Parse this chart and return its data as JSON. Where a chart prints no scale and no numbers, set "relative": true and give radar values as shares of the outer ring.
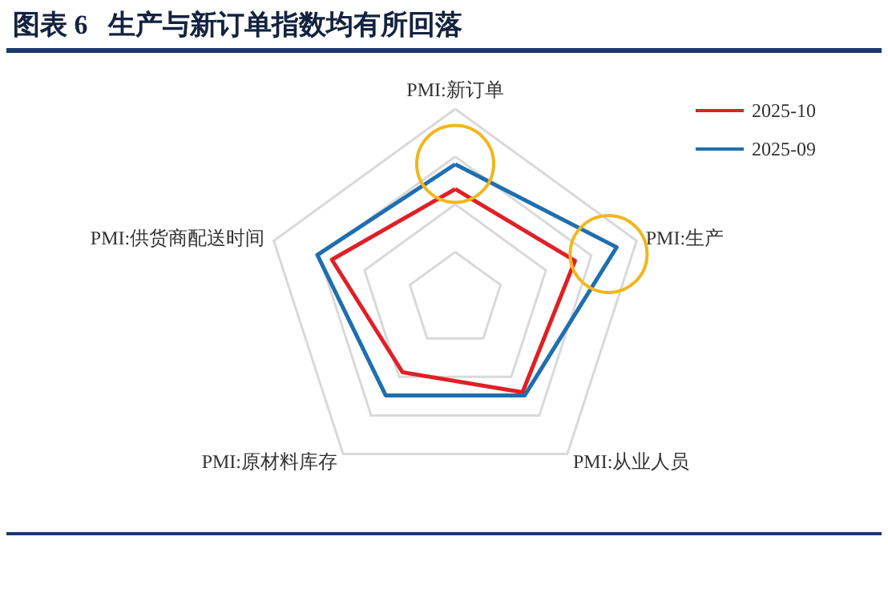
{
  "chart_data": {
    "type": "radar",
    "title": "图表 6   生产与新订单指数均有所回落",
    "relative": true,
    "categories": [
      "PMI:新订单",
      "PMI:生产",
      "PMI:从业人员",
      "PMI:原材料库存",
      "PMI:供货商配送时间"
    ],
    "legend": "top right",
    "series": [
      {
        "name": "2025-10",
        "color": "#e01f26",
        "values": [
          0.58,
          0.66,
          0.6,
          0.47,
          0.68
        ]
      },
      {
        "name": "2025-09",
        "color": "#1f6fb0",
        "values": [
          0.71,
          0.89,
          0.62,
          0.62,
          0.76
        ]
      }
    ]
  }
}
